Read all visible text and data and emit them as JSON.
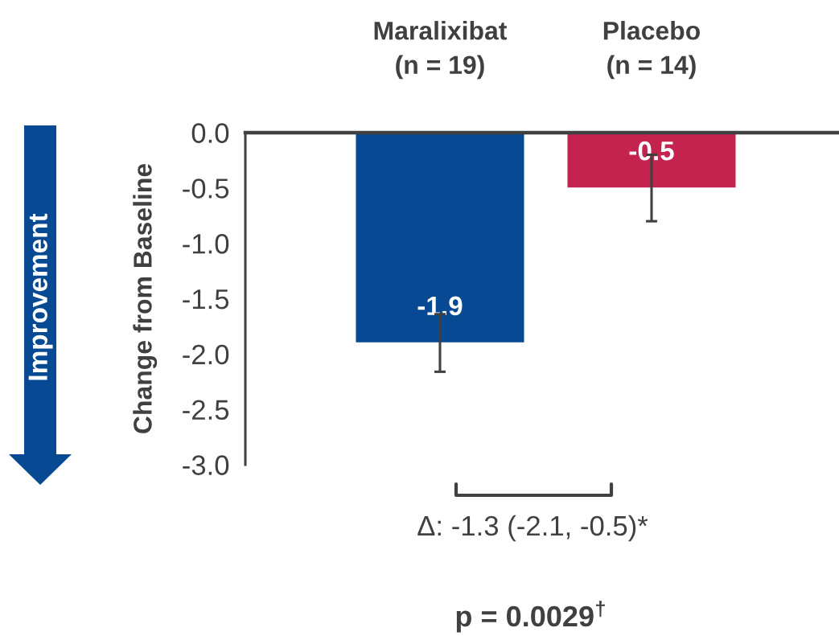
{
  "chart_data": {
    "type": "bar",
    "categories": [
      "Maralixibat\n(n = 19)",
      "Placebo\n(n = 14)"
    ],
    "values": [
      -1.9,
      -0.5
    ],
    "colors": [
      "#074a93",
      "#c5234f"
    ],
    "errors": [
      0.26,
      0.3
    ],
    "data_labels": true,
    "ylabel": "Change from Baseline",
    "ylim": [
      -3,
      0
    ],
    "yticks": [
      {
        "value": 0,
        "label": "0.0"
      },
      {
        "value": -0.5,
        "label": "-0.5"
      },
      {
        "value": -1,
        "label": "-1.0"
      },
      {
        "value": -1.5,
        "label": "-1.5"
      },
      {
        "value": -2,
        "label": "-2.0"
      },
      {
        "value": -2.5,
        "label": "-2.5"
      },
      {
        "value": -3,
        "label": "-3.0"
      }
    ],
    "annotations": [
      "Improvement",
      "Δ: -1.3 (-2.1, -0.5)*",
      "p = 0.0029$^{†}$"
    ]
  }
}
